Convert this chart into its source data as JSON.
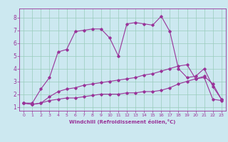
{
  "xlabel": "Windchill (Refroidissement éolien,°C)",
  "ylabel": "",
  "bg_color": "#cce8f0",
  "grid_color": "#99ccbb",
  "line_color": "#993399",
  "xlim": [
    -0.5,
    23.5
  ],
  "ylim": [
    0.7,
    8.7
  ],
  "xticks": [
    0,
    1,
    2,
    3,
    4,
    5,
    6,
    7,
    8,
    9,
    10,
    11,
    12,
    13,
    14,
    15,
    16,
    17,
    18,
    19,
    20,
    21,
    22,
    23
  ],
  "yticks": [
    1,
    2,
    3,
    4,
    5,
    6,
    7,
    8
  ],
  "series1_x": [
    0,
    1,
    2,
    3,
    4,
    5,
    6,
    7,
    8,
    9,
    10,
    11,
    12,
    13,
    14,
    15,
    16,
    17,
    18,
    19,
    20,
    21,
    22,
    23
  ],
  "series1_y": [
    1.3,
    1.3,
    2.4,
    3.3,
    5.3,
    5.5,
    6.9,
    7.0,
    7.1,
    7.1,
    6.4,
    5.0,
    7.5,
    7.6,
    7.5,
    7.4,
    8.1,
    6.9,
    4.0,
    3.3,
    3.4,
    4.0,
    2.6,
    1.6
  ],
  "series2_x": [
    0,
    1,
    2,
    3,
    4,
    5,
    6,
    7,
    8,
    9,
    10,
    11,
    12,
    13,
    14,
    15,
    16,
    17,
    18,
    19,
    20,
    21,
    22,
    23
  ],
  "series2_y": [
    1.3,
    1.2,
    1.3,
    1.5,
    1.6,
    1.7,
    1.7,
    1.8,
    1.9,
    2.0,
    2.0,
    2.0,
    2.1,
    2.1,
    2.2,
    2.2,
    2.3,
    2.5,
    2.8,
    3.0,
    3.2,
    3.3,
    1.6,
    1.5
  ],
  "series3_x": [
    0,
    1,
    2,
    3,
    4,
    5,
    6,
    7,
    8,
    9,
    10,
    11,
    12,
    13,
    14,
    15,
    16,
    17,
    18,
    19,
    20,
    21,
    22,
    23
  ],
  "series3_y": [
    1.3,
    1.2,
    1.3,
    1.8,
    2.2,
    2.4,
    2.5,
    2.7,
    2.8,
    2.9,
    3.0,
    3.1,
    3.2,
    3.3,
    3.5,
    3.6,
    3.8,
    4.0,
    4.2,
    4.3,
    3.2,
    3.4,
    2.8,
    1.6
  ]
}
